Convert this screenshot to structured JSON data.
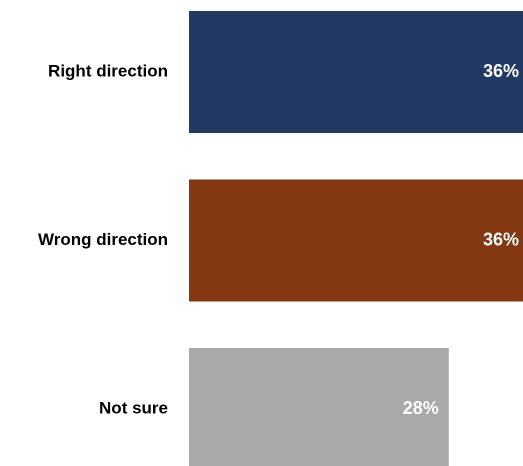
{
  "chart_data": {
    "type": "bar",
    "orientation": "horizontal",
    "categories": [
      "Right direction",
      "Wrong direction",
      "Not sure"
    ],
    "values": [
      36,
      36,
      28
    ],
    "value_labels": [
      "36%",
      "36%",
      "28%"
    ],
    "colors": [
      "#223963",
      "#843811",
      "#a9a9a9"
    ],
    "xlim": [
      0,
      36
    ],
    "grid": false,
    "legend": "none"
  }
}
